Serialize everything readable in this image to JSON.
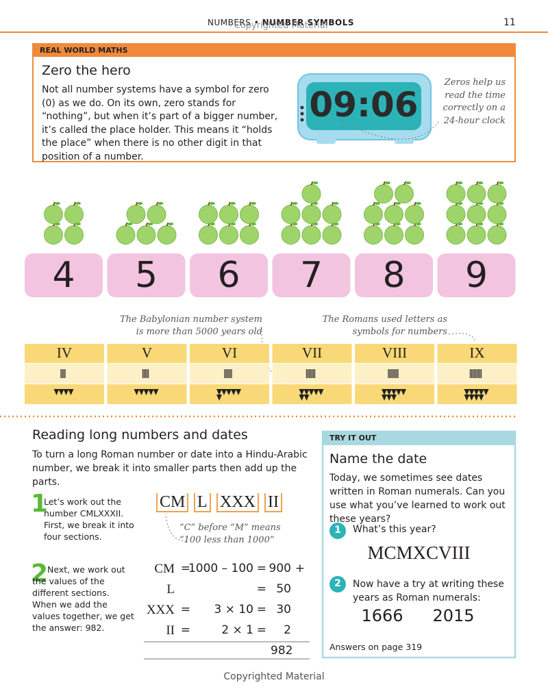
{
  "header": {
    "section": "NUMBERS",
    "title": "NUMBER SYMBOLS",
    "page": "11",
    "watermark": "Copyrighted Material"
  },
  "real_world": {
    "label": "REAL WORLD MATHS",
    "title": "Zero the hero",
    "text": "Not all number systems have a symbol for zero (0) as we do. On its own, zero stands for “nothing”, but when it’s part of a bigger number, it’s called the place holder. This means it “holds the place” when there is no other digit in that position of a number.",
    "clock": "09:06",
    "note": "Zeros help us read the time correctly on a 24-hour clock"
  },
  "digits": [
    4,
    5,
    6,
    7,
    8,
    9
  ],
  "notes": {
    "babylonian": "The Babylonian number system is more than 5000 years old",
    "roman": "The Romans used letters as symbols for numbers"
  },
  "roman": [
    "IV",
    "V",
    "VI",
    "VII",
    "VIII",
    "IX"
  ],
  "reading": {
    "title": "Reading long numbers and dates",
    "intro": "To turn a long Roman number or date into a Hindu-Arabic number, we break it into smaller parts then add up the parts.",
    "step1": {
      "number": "1",
      "text": "Let’s work out the number CMLXXXII. First, we break it into four sections."
    },
    "parts": [
      "CM",
      "L",
      "XXX",
      "II"
    ],
    "parts_note": "“C” before “M” means “100 less than 1000”",
    "step2": {
      "number": "2",
      "text": "Next, we work out the values of the different sections. When we add the values together, we get the answer: 982."
    },
    "rows": [
      [
        "CM",
        "=",
        "1000 – 100",
        "=",
        "900",
        "+"
      ],
      [
        "L",
        "=",
        "50"
      ],
      [
        "XXX",
        "=",
        "3 × 10",
        "=",
        "30"
      ],
      [
        "II",
        "=",
        "2 × 1",
        "=",
        "2"
      ]
    ],
    "total": "982"
  },
  "try_it": {
    "label": "TRY IT OUT",
    "title": "Name the date",
    "text": "Today, we sometimes see dates written in Roman numerals. Can you use what you’ve learned to work out these years?",
    "q1": {
      "number": "1",
      "text": "What’s this year?",
      "answer": "MCMXCVIII"
    },
    "q2": {
      "number": "2",
      "text": "Now have a try at writing these years as Roman numerals:",
      "years": [
        "1666",
        "2015"
      ]
    },
    "footer": "Answers on page 319"
  },
  "footer": "Copyrighted Material"
}
